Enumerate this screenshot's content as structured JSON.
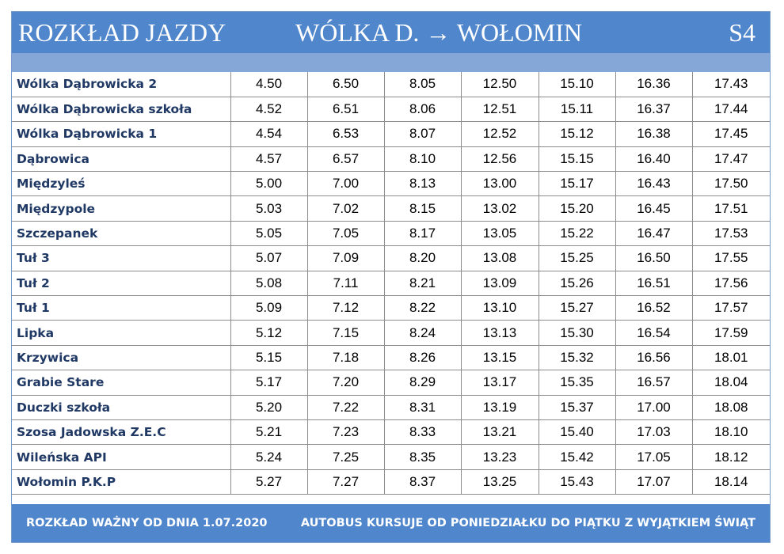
{
  "header": {
    "title": "ROZKŁAD JAZDY",
    "route": "WÓLKA D.  →  WOŁOMIN",
    "line": "S4"
  },
  "stops": [
    {
      "name": "Wólka Dąbrowicka 2",
      "times": [
        "4.50",
        "6.50",
        "8.05",
        "12.50",
        "15.10",
        "16.36",
        "17.43"
      ]
    },
    {
      "name": "Wólka Dąbrowicka szkoła",
      "times": [
        "4.52",
        "6.51",
        "8.06",
        "12.51",
        "15.11",
        "16.37",
        "17.44"
      ]
    },
    {
      "name": "Wólka Dąbrowicka 1",
      "times": [
        "4.54",
        "6.53",
        "8.07",
        "12.52",
        "15.12",
        "16.38",
        "17.45"
      ]
    },
    {
      "name": "Dąbrowica",
      "times": [
        "4.57",
        "6.57",
        "8.10",
        "12.56",
        "15.15",
        "16.40",
        "17.47"
      ]
    },
    {
      "name": "Międzyleś",
      "times": [
        "5.00",
        "7.00",
        "8.13",
        "13.00",
        "15.17",
        "16.43",
        "17.50"
      ]
    },
    {
      "name": "Międzypole",
      "times": [
        "5.03",
        "7.02",
        "8.15",
        "13.02",
        "15.20",
        "16.45",
        "17.51"
      ]
    },
    {
      "name": "Szczepanek",
      "times": [
        "5.05",
        "7.05",
        "8.17",
        "13.05",
        "15.22",
        "16.47",
        "17.53"
      ]
    },
    {
      "name": "Tuł 3",
      "times": [
        "5.07",
        "7.09",
        "8.20",
        "13.08",
        "15.25",
        "16.50",
        "17.55"
      ]
    },
    {
      "name": "Tuł 2",
      "times": [
        "5.08",
        "7.11",
        "8.21",
        "13.09",
        "15.26",
        "16.51",
        "17.56"
      ]
    },
    {
      "name": "Tuł 1",
      "times": [
        "5.09",
        "7.12",
        "8.22",
        "13.10",
        "15.27",
        "16.52",
        "17.57"
      ]
    },
    {
      "name": "Lipka",
      "times": [
        "5.12",
        "7.15",
        "8.24",
        "13.13",
        "15.30",
        "16.54",
        "17.59"
      ]
    },
    {
      "name": "Krzywica",
      "times": [
        "5.15",
        "7.18",
        "8.26",
        "13.15",
        "15.32",
        "16.56",
        "18.01"
      ]
    },
    {
      "name": "Grabie Stare",
      "times": [
        "5.17",
        "7.20",
        "8.29",
        "13.17",
        "15.35",
        "16.57",
        "18.04"
      ]
    },
    {
      "name": "Duczki szkoła",
      "times": [
        "5.20",
        "7.22",
        "8.31",
        "13.19",
        "15.37",
        "17.00",
        "18.08"
      ]
    },
    {
      "name": "Szosa Jadowska Z.E.C",
      "times": [
        "5.21",
        "7.23",
        "8.33",
        "13.21",
        "15.40",
        "17.03",
        "18.10"
      ]
    },
    {
      "name": "Wileńska  API",
      "times": [
        "5.24",
        "7.25",
        "8.35",
        "13.23",
        "15.42",
        "17.05",
        "18.12"
      ]
    },
    {
      "name": "Wołomin P.K.P",
      "times": [
        "5.27",
        "7.27",
        "8.37",
        "13.25",
        "15.43",
        "17.07",
        "18.14"
      ]
    }
  ],
  "footer": {
    "valid_from": "ROZKŁAD WAŻNY OD DNIA 1.07.2020",
    "service_note": "AUTOBUS KURSUJE OD PONIEDZIAŁKU DO PIĄTKU Z WYJĄTKIEM ŚWIĄT"
  },
  "colors": {
    "header_blue": "#4f86cc",
    "subbar_blue": "#84a7d8",
    "stop_name": "#1f3864"
  }
}
